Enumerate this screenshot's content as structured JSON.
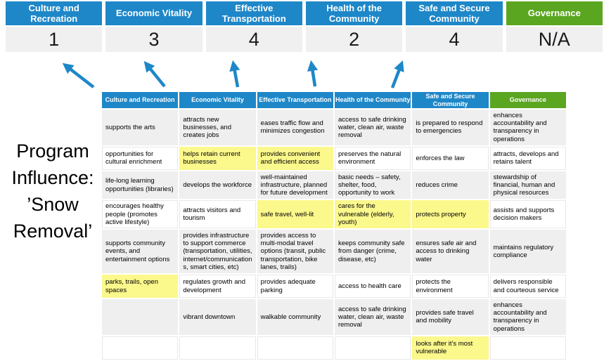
{
  "slide": {
    "title": {
      "lines": [
        "Program",
        "Influence:",
        "’Snow",
        "Removal’"
      ]
    }
  },
  "colors": {
    "header_blue": "#1E87C8",
    "header_green": "#5BA621",
    "highlight_yellow": "#FBF88C",
    "stripe_gray": "#EFEFEF",
    "score_bg": "#F0F0F0",
    "arrow_blue": "#1E87C8"
  },
  "scoreboard": {
    "items": [
      {
        "label": "Culture and Recreation",
        "score": "1"
      },
      {
        "label": "Economic Vitality",
        "score": "3"
      },
      {
        "label": "Effective Transportation",
        "score": "4"
      },
      {
        "label": "Health of the Community",
        "score": "2"
      },
      {
        "label": "Safe and Secure Community",
        "score": "4"
      },
      {
        "label": "Governance",
        "score": "N/A"
      }
    ]
  },
  "arrows": [
    {
      "name": "arrow-culture-recreation",
      "direction": "up-left"
    },
    {
      "name": "arrow-economic-vitality",
      "direction": "up-left"
    },
    {
      "name": "arrow-effective-transportation",
      "direction": "up"
    },
    {
      "name": "arrow-health-community",
      "direction": "up"
    },
    {
      "name": "arrow-safe-secure-community",
      "direction": "up-right"
    }
  ],
  "matrix": {
    "headers": [
      {
        "label": "Culture and Recreation",
        "color": "blue"
      },
      {
        "label": "Economic Vitality",
        "color": "blue"
      },
      {
        "label": "Effective Transportation",
        "color": "blue"
      },
      {
        "label": "Health of the Community",
        "color": "blue"
      },
      {
        "label": "Safe and Secure Community",
        "color": "blue"
      },
      {
        "label": "Governance",
        "color": "green"
      }
    ],
    "rows": [
      [
        {
          "text": "supports the arts",
          "highlight": false
        },
        {
          "text": "attracts new businesses, and creates jobs",
          "highlight": false
        },
        {
          "text": "eases traffic flow and minimizes congestion",
          "highlight": true
        },
        {
          "text": "access to safe drinking water, clean air, waste removal",
          "highlight": false
        },
        {
          "text": "is prepared to respond to emergencies",
          "highlight": true
        },
        {
          "text": "enhances accountability and transparency in operations",
          "highlight": false
        }
      ],
      [
        {
          "text": "opportunities for cultural enrichment",
          "highlight": false
        },
        {
          "text": "helps retain current businesses",
          "highlight": true
        },
        {
          "text": "provides convenient and efficient access",
          "highlight": true
        },
        {
          "text": "preserves the natural environment",
          "highlight": false
        },
        {
          "text": "enforces the law",
          "highlight": false
        },
        {
          "text": "attracts, develops and retains talent",
          "highlight": false
        }
      ],
      [
        {
          "text": "life-long learning opportunities (libraries)",
          "highlight": false
        },
        {
          "text": "develops the workforce",
          "highlight": false
        },
        {
          "text": "well-maintained infrastructure, planned for future development",
          "highlight": false
        },
        {
          "text": "basic needs – safety, shelter, food, opportunity to work",
          "highlight": true
        },
        {
          "text": "reduces crime",
          "highlight": false
        },
        {
          "text": "stewardship of financial, human and physical resources",
          "highlight": false
        }
      ],
      [
        {
          "text": "encourages healthy people (promotes active lifestyle)",
          "highlight": false
        },
        {
          "text": "attracts visitors and tourism",
          "highlight": false
        },
        {
          "text": "safe travel, well-lit",
          "highlight": true
        },
        {
          "text": "cares for the vulnerable (elderly, youth)",
          "highlight": true
        },
        {
          "text": "protects property",
          "highlight": true
        },
        {
          "text": "assists and supports decision makers",
          "highlight": false
        }
      ],
      [
        {
          "text": "supports community events, and entertainment options",
          "highlight": false
        },
        {
          "text": "provides infrastructure to support commerce (transportation, utilities, internet/communications, smart cities, etc)",
          "highlight": true
        },
        {
          "text": "provides access to multi-modal travel options (transit, public transportation, bike lanes, trails)",
          "highlight": true
        },
        {
          "text": "keeps community safe from danger (crime, disease, etc)",
          "highlight": true
        },
        {
          "text": "ensures safe air and access to drinking water",
          "highlight": false
        },
        {
          "text": "maintains regulatory compliance",
          "highlight": false
        }
      ],
      [
        {
          "text": "parks, trails, open spaces",
          "highlight": true
        },
        {
          "text": "regulates growth and development",
          "highlight": false
        },
        {
          "text": "provides adequate parking",
          "highlight": false
        },
        {
          "text": "access to health care",
          "highlight": false
        },
        {
          "text": "protects the environment",
          "highlight": false
        },
        {
          "text": "delivers responsible and courteous service",
          "highlight": false
        }
      ],
      [
        {
          "text": "",
          "highlight": false
        },
        {
          "text": "vibrant downtown",
          "highlight": false
        },
        {
          "text": "walkable community",
          "highlight": false
        },
        {
          "text": "access to safe drinking water, clean air, waste removal",
          "highlight": false
        },
        {
          "text": "provides safe travel and mobility",
          "highlight": true
        },
        {
          "text": "enhances accountability and transparency in operations",
          "highlight": false
        }
      ],
      [
        {
          "text": "",
          "highlight": false
        },
        {
          "text": "",
          "highlight": false
        },
        {
          "text": "",
          "highlight": false
        },
        {
          "text": "",
          "highlight": false
        },
        {
          "text": "looks after it's most vulnerable",
          "highlight": true
        },
        {
          "text": "",
          "highlight": false
        }
      ]
    ]
  }
}
